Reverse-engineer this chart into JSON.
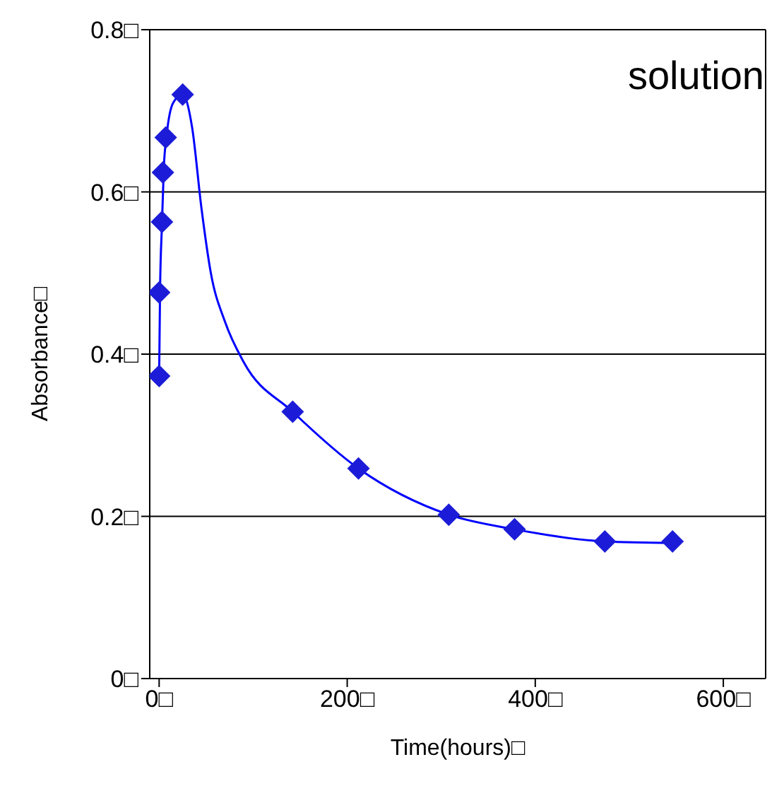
{
  "chart_data": {
    "type": "scatter",
    "xlabel": "Time(hours)□",
    "ylabel": "Absorbance□",
    "annotations": [
      "solution"
    ],
    "xlim": [
      -10,
      645
    ],
    "xticks": [
      {
        "value": 0,
        "label": "0□"
      },
      {
        "value": 200,
        "label": "200□"
      },
      {
        "value": 400,
        "label": "400□"
      },
      {
        "value": 600,
        "label": "600□"
      }
    ],
    "ylim": [
      0,
      0.8
    ],
    "yticks": [
      {
        "value": 0,
        "label": "0□"
      },
      {
        "value": 0.2,
        "label": "0.2□"
      },
      {
        "value": 0.4,
        "label": "0.4□"
      },
      {
        "value": 0.6,
        "label": "0.6□"
      },
      {
        "value": 0.8,
        "label": "0.8□"
      }
    ],
    "grid": "y",
    "series": [
      {
        "color": "#1c1cd8",
        "marker": "diamond",
        "x": [
          0,
          0,
          3,
          4,
          7,
          25,
          142,
          212,
          308,
          378,
          474,
          546
        ],
        "values": [
          0.373,
          0.476,
          0.563,
          0.624,
          0.667,
          0.72,
          0.329,
          0.259,
          0.202,
          0.184,
          0.169,
          0.169
        ]
      },
      {
        "type": "line",
        "color": "#0000ff",
        "marker": "none",
        "line_style": "solid",
        "x": [
          0,
          1,
          3,
          5,
          8,
          15,
          25,
          35,
          45,
          55,
          70,
          90,
          142,
          212,
          308,
          378,
          474,
          546
        ],
        "values": [
          0.373,
          0.48,
          0.56,
          0.63,
          0.67,
          0.71,
          0.72,
          0.68,
          0.58,
          0.5,
          0.44,
          0.39,
          0.329,
          0.259,
          0.202,
          0.184,
          0.169,
          0.167
        ]
      }
    ]
  }
}
